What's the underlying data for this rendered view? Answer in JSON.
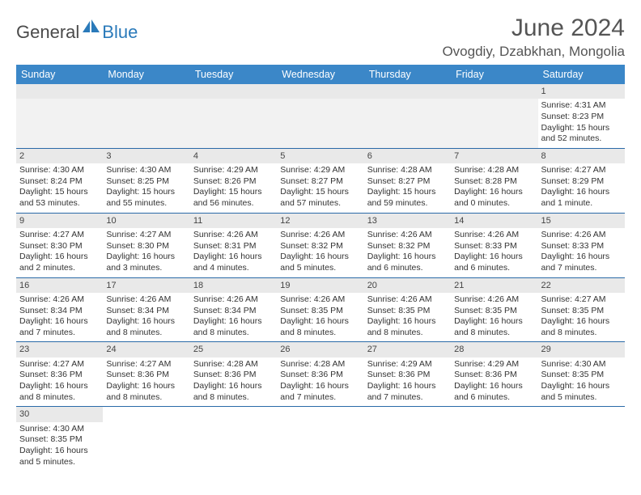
{
  "logo": {
    "part1": "General",
    "part2": "Blue"
  },
  "title": "June 2024",
  "location": "Ovogdiy, Dzabkhan, Mongolia",
  "colors": {
    "header_bg": "#3b87c8",
    "header_text": "#ffffff",
    "daynum_bg": "#e9e9e9",
    "row_border": "#2a6aa8",
    "logo_blue": "#2a7aba",
    "logo_gray": "#4a4a4a"
  },
  "day_headers": [
    "Sunday",
    "Monday",
    "Tuesday",
    "Wednesday",
    "Thursday",
    "Friday",
    "Saturday"
  ],
  "weeks": [
    [
      null,
      null,
      null,
      null,
      null,
      null,
      {
        "n": "1",
        "sr": "Sunrise: 4:31 AM",
        "ss": "Sunset: 8:23 PM",
        "dl": "Daylight: 15 hours and 52 minutes."
      }
    ],
    [
      {
        "n": "2",
        "sr": "Sunrise: 4:30 AM",
        "ss": "Sunset: 8:24 PM",
        "dl": "Daylight: 15 hours and 53 minutes."
      },
      {
        "n": "3",
        "sr": "Sunrise: 4:30 AM",
        "ss": "Sunset: 8:25 PM",
        "dl": "Daylight: 15 hours and 55 minutes."
      },
      {
        "n": "4",
        "sr": "Sunrise: 4:29 AM",
        "ss": "Sunset: 8:26 PM",
        "dl": "Daylight: 15 hours and 56 minutes."
      },
      {
        "n": "5",
        "sr": "Sunrise: 4:29 AM",
        "ss": "Sunset: 8:27 PM",
        "dl": "Daylight: 15 hours and 57 minutes."
      },
      {
        "n": "6",
        "sr": "Sunrise: 4:28 AM",
        "ss": "Sunset: 8:27 PM",
        "dl": "Daylight: 15 hours and 59 minutes."
      },
      {
        "n": "7",
        "sr": "Sunrise: 4:28 AM",
        "ss": "Sunset: 8:28 PM",
        "dl": "Daylight: 16 hours and 0 minutes."
      },
      {
        "n": "8",
        "sr": "Sunrise: 4:27 AM",
        "ss": "Sunset: 8:29 PM",
        "dl": "Daylight: 16 hours and 1 minute."
      }
    ],
    [
      {
        "n": "9",
        "sr": "Sunrise: 4:27 AM",
        "ss": "Sunset: 8:30 PM",
        "dl": "Daylight: 16 hours and 2 minutes."
      },
      {
        "n": "10",
        "sr": "Sunrise: 4:27 AM",
        "ss": "Sunset: 8:30 PM",
        "dl": "Daylight: 16 hours and 3 minutes."
      },
      {
        "n": "11",
        "sr": "Sunrise: 4:26 AM",
        "ss": "Sunset: 8:31 PM",
        "dl": "Daylight: 16 hours and 4 minutes."
      },
      {
        "n": "12",
        "sr": "Sunrise: 4:26 AM",
        "ss": "Sunset: 8:32 PM",
        "dl": "Daylight: 16 hours and 5 minutes."
      },
      {
        "n": "13",
        "sr": "Sunrise: 4:26 AM",
        "ss": "Sunset: 8:32 PM",
        "dl": "Daylight: 16 hours and 6 minutes."
      },
      {
        "n": "14",
        "sr": "Sunrise: 4:26 AM",
        "ss": "Sunset: 8:33 PM",
        "dl": "Daylight: 16 hours and 6 minutes."
      },
      {
        "n": "15",
        "sr": "Sunrise: 4:26 AM",
        "ss": "Sunset: 8:33 PM",
        "dl": "Daylight: 16 hours and 7 minutes."
      }
    ],
    [
      {
        "n": "16",
        "sr": "Sunrise: 4:26 AM",
        "ss": "Sunset: 8:34 PM",
        "dl": "Daylight: 16 hours and 7 minutes."
      },
      {
        "n": "17",
        "sr": "Sunrise: 4:26 AM",
        "ss": "Sunset: 8:34 PM",
        "dl": "Daylight: 16 hours and 8 minutes."
      },
      {
        "n": "18",
        "sr": "Sunrise: 4:26 AM",
        "ss": "Sunset: 8:34 PM",
        "dl": "Daylight: 16 hours and 8 minutes."
      },
      {
        "n": "19",
        "sr": "Sunrise: 4:26 AM",
        "ss": "Sunset: 8:35 PM",
        "dl": "Daylight: 16 hours and 8 minutes."
      },
      {
        "n": "20",
        "sr": "Sunrise: 4:26 AM",
        "ss": "Sunset: 8:35 PM",
        "dl": "Daylight: 16 hours and 8 minutes."
      },
      {
        "n": "21",
        "sr": "Sunrise: 4:26 AM",
        "ss": "Sunset: 8:35 PM",
        "dl": "Daylight: 16 hours and 8 minutes."
      },
      {
        "n": "22",
        "sr": "Sunrise: 4:27 AM",
        "ss": "Sunset: 8:35 PM",
        "dl": "Daylight: 16 hours and 8 minutes."
      }
    ],
    [
      {
        "n": "23",
        "sr": "Sunrise: 4:27 AM",
        "ss": "Sunset: 8:36 PM",
        "dl": "Daylight: 16 hours and 8 minutes."
      },
      {
        "n": "24",
        "sr": "Sunrise: 4:27 AM",
        "ss": "Sunset: 8:36 PM",
        "dl": "Daylight: 16 hours and 8 minutes."
      },
      {
        "n": "25",
        "sr": "Sunrise: 4:28 AM",
        "ss": "Sunset: 8:36 PM",
        "dl": "Daylight: 16 hours and 8 minutes."
      },
      {
        "n": "26",
        "sr": "Sunrise: 4:28 AM",
        "ss": "Sunset: 8:36 PM",
        "dl": "Daylight: 16 hours and 7 minutes."
      },
      {
        "n": "27",
        "sr": "Sunrise: 4:29 AM",
        "ss": "Sunset: 8:36 PM",
        "dl": "Daylight: 16 hours and 7 minutes."
      },
      {
        "n": "28",
        "sr": "Sunrise: 4:29 AM",
        "ss": "Sunset: 8:36 PM",
        "dl": "Daylight: 16 hours and 6 minutes."
      },
      {
        "n": "29",
        "sr": "Sunrise: 4:30 AM",
        "ss": "Sunset: 8:35 PM",
        "dl": "Daylight: 16 hours and 5 minutes."
      }
    ],
    [
      {
        "n": "30",
        "sr": "Sunrise: 4:30 AM",
        "ss": "Sunset: 8:35 PM",
        "dl": "Daylight: 16 hours and 5 minutes."
      },
      null,
      null,
      null,
      null,
      null,
      null
    ]
  ]
}
